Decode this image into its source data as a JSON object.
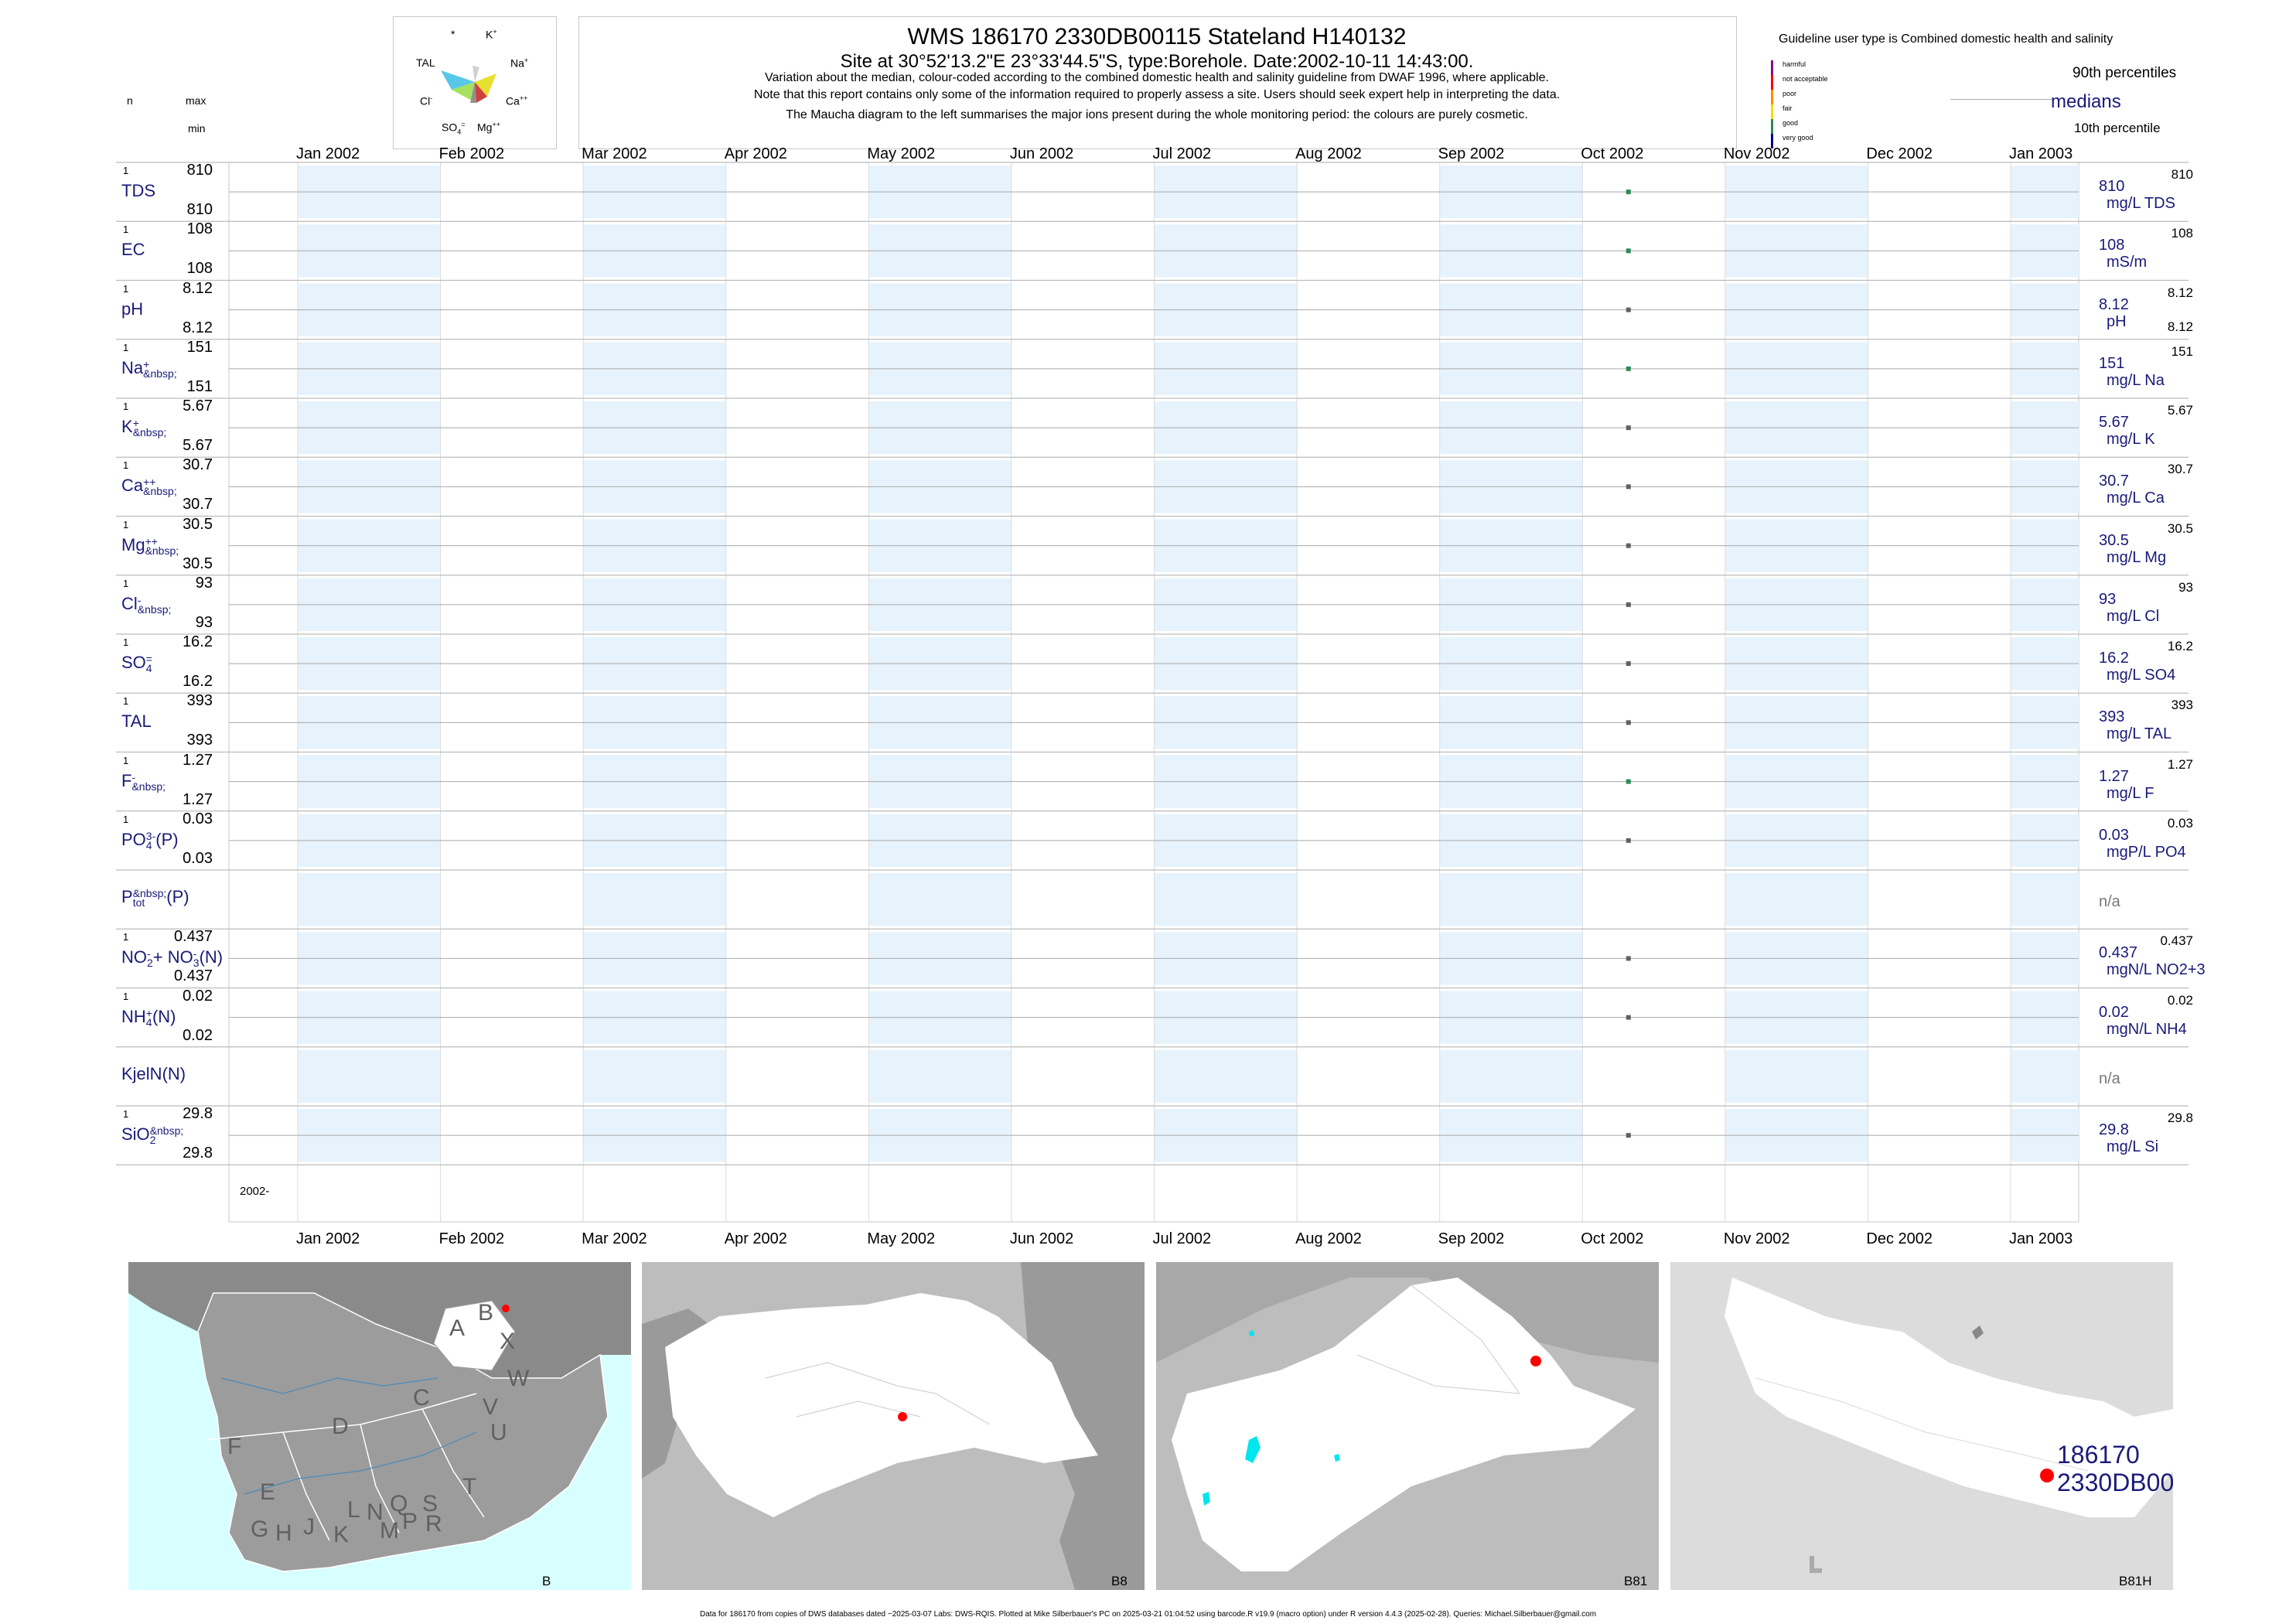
{
  "header": {
    "title": "WMS 186170 2330DB00115 Stateland H140132",
    "subtitle": "Site at 30°52'13.2\"E 23°33'44.5\"S, type:Borehole. Date:2002-10-11 14:43:00.",
    "note1": "Variation about the median,  colour-coded according to the combined domestic health and salinity guideline from DWAF 1996, where applicable.",
    "note2": "Note that this report contains only some of the information required to properly assess a site. Users should seek expert help in interpreting the data.",
    "note3": "The Maucha diagram to the left summarises the major ions present during the whole monitoring period: the colours are purely cosmetic."
  },
  "maucha": {
    "labels": {
      "star": "*",
      "k": "K",
      "tal": "TAL",
      "na": "Na",
      "cl": "Cl",
      "ca": "Ca",
      "so4": "SO",
      "mg": "Mg"
    },
    "sups": {
      "k": "+",
      "na": "+",
      "cl": "-",
      "ca": "++",
      "so4": "=",
      "mg": "++"
    },
    "subs": {
      "so4": "4"
    }
  },
  "legend": {
    "guideline_title": "Guideline user type is Combined domestic health and salinity",
    "categories": [
      {
        "label": "harmful",
        "color": "#8b008b"
      },
      {
        "label": "not acceptable",
        "color": "#ff0000"
      },
      {
        "label": "poor",
        "color": "#ff8c00"
      },
      {
        "label": "fair",
        "color": "#ffd700"
      },
      {
        "label": "good",
        "color": "#2e8b57"
      },
      {
        "label": "very good",
        "color": "#00008b"
      }
    ],
    "p90": "90th percentiles",
    "medians": "medians",
    "p10": "10th percentile"
  },
  "left_header": {
    "n": "n",
    "max": "max",
    "min": "min"
  },
  "chart_data": {
    "type": "line",
    "x_axis_months": [
      "Jan 2002",
      "Feb 2002",
      "Mar 2002",
      "Apr 2002",
      "May 2002",
      "Jun 2002",
      "Jul 2002",
      "Aug 2002",
      "Sep 2002",
      "Oct 2002",
      "Nov 2002",
      "Dec 2002",
      "Jan 2003"
    ],
    "x_axis_year_label": "2002-",
    "sample_date": "2002-10-11",
    "shading": "alternate months shaded light blue",
    "grid": true,
    "series": [
      {
        "name": "TDS",
        "sup": "",
        "sub": "",
        "n": "1",
        "max": "810",
        "min": "810",
        "median": "810",
        "unit": "mg/L TDS",
        "value": 810,
        "color": "#2e8b57"
      },
      {
        "name": "EC",
        "sup": "",
        "sub": "",
        "n": "1",
        "max": "108",
        "min": "108",
        "median": "108",
        "unit": "mS/m",
        "value": 108,
        "color": "#2e8b57"
      },
      {
        "name": "pH",
        "sup": "",
        "sub": "",
        "n": "1",
        "max": "8.12",
        "min": "8.12",
        "median": "8.12",
        "unit": "pH",
        "value": 8.12,
        "color": "#606060",
        "right_min": "8.12"
      },
      {
        "name": "Na",
        "sup": "+",
        "sub": "",
        "n": "1",
        "max": "151",
        "min": "151",
        "median": "151",
        "unit": "mg/L Na",
        "value": 151,
        "color": "#2e8b57"
      },
      {
        "name": "K",
        "sup": "+",
        "sub": "",
        "n": "1",
        "max": "5.67",
        "min": "5.67",
        "median": "5.67",
        "unit": "mg/L K",
        "value": 5.67,
        "color": "#606060"
      },
      {
        "name": "Ca",
        "sup": "++",
        "sub": "",
        "n": "1",
        "max": "30.7",
        "min": "30.7",
        "median": "30.7",
        "unit": "mg/L Ca",
        "value": 30.7,
        "color": "#606060"
      },
      {
        "name": "Mg",
        "sup": "++",
        "sub": "",
        "n": "1",
        "max": "30.5",
        "min": "30.5",
        "median": "30.5",
        "unit": "mg/L Mg",
        "value": 30.5,
        "color": "#606060"
      },
      {
        "name": "Cl",
        "sup": "-",
        "sub": "",
        "n": "1",
        "max": "93",
        "min": "93",
        "median": "93",
        "unit": "mg/L Cl",
        "value": 93,
        "color": "#606060"
      },
      {
        "name": "SO",
        "sup": "=",
        "sub": "4",
        "n": "1",
        "max": "16.2",
        "min": "16.2",
        "median": "16.2",
        "unit": "mg/L SO4",
        "value": 16.2,
        "color": "#606060"
      },
      {
        "name": "TAL",
        "sup": "",
        "sub": "",
        "n": "1",
        "max": "393",
        "min": "393",
        "median": "393",
        "unit": "mg/L TAL",
        "value": 393,
        "color": "#606060"
      },
      {
        "name": "F",
        "sup": "-",
        "sub": "",
        "n": "1",
        "max": "1.27",
        "min": "1.27",
        "median": "1.27",
        "unit": "mg/L F",
        "value": 1.27,
        "color": "#2e8b57"
      },
      {
        "name": "PO",
        "sup": "3-",
        "sub": "4",
        "suffix": "(P)",
        "n": "1",
        "max": "0.03",
        "min": "0.03",
        "median": "0.03",
        "unit": "mgP/L PO4",
        "value": 0.03,
        "color": "#606060"
      },
      {
        "name": "P",
        "sup": "",
        "sub": "tot",
        "suffix": "(P)",
        "n": "",
        "max": "",
        "min": "",
        "median": "n/a",
        "unit": "",
        "value": null,
        "color": "#606060"
      },
      {
        "name": "NO",
        "sup": "-",
        "sub": "2",
        "suffix": "+ NO",
        "sup2": "-",
        "sub2": "3",
        "suffix2": "(N)",
        "n": "1",
        "max": "0.437",
        "min": "0.437",
        "median": "0.437",
        "unit": "mgN/L NO2+3",
        "value": 0.437,
        "color": "#606060"
      },
      {
        "name": "NH",
        "sup": "+",
        "sub": "4",
        "suffix": "(N)",
        "n": "1",
        "max": "0.02",
        "min": "0.02",
        "median": "0.02",
        "unit": "mgN/L NH4",
        "value": 0.02,
        "color": "#606060"
      },
      {
        "name": "KjelN(N)",
        "sup": "",
        "sub": "",
        "n": "",
        "max": "",
        "min": "",
        "median": "n/a",
        "unit": "",
        "value": null,
        "color": "#606060"
      },
      {
        "name": "SiO",
        "sup": "",
        "sub": "2",
        "n": "1",
        "max": "29.8",
        "min": "29.8",
        "median": "29.8",
        "unit": "mg/L Si",
        "value": 29.8,
        "color": "#606060"
      }
    ]
  },
  "maps": {
    "panel1_label": "B",
    "panel2_label": "B8",
    "panel3_label": "B81",
    "panel4_label": "B81H",
    "letters": [
      "A",
      "B",
      "X",
      "W",
      "C",
      "V",
      "U",
      "D",
      "F",
      "E",
      "T",
      "G",
      "H",
      "J",
      "K",
      "L",
      "N",
      "Q",
      "M",
      "P",
      "S",
      "R"
    ],
    "site_label_1": "186170",
    "site_label_2": "2330DB00"
  },
  "footer": "Data for 186170 from copies of DWS databases dated ~2025-03-07 Labs: DWS-RQIS. Plotted at Mike Silberbauer's PC on 2025-03-21 01:04:52 using barcode.R v19.9 (macro option) under R version 4.4.3 (2025-02-28). Queries: Michael.Silberbauer@gmail.com"
}
